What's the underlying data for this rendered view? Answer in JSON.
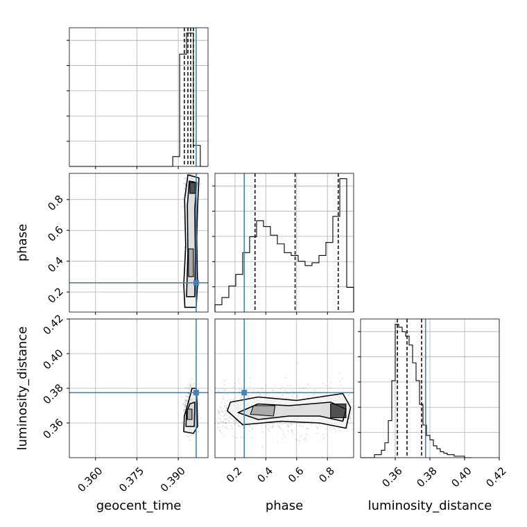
{
  "chart_data": {
    "type": "corner",
    "parameters": [
      "geocent_time",
      "phase",
      "luminosity_distance"
    ],
    "axes": {
      "geocent_time": {
        "range": [
          0.3505,
          0.4008
        ],
        "ticks": [
          0.36,
          0.375,
          0.39
        ],
        "tick_labels": [
          "0.360",
          "0.375",
          "0.390"
        ]
      },
      "phase": {
        "range": [
          0.07,
          0.97
        ],
        "ticks": [
          0.2,
          0.4,
          0.6,
          0.8
        ],
        "tick_labels": [
          "0.2",
          "0.4",
          "0.6",
          "0.8"
        ]
      },
      "luminosity_distance": {
        "range": [
          0.34,
          0.42
        ],
        "ticks": [
          0.36,
          0.38,
          0.4,
          0.42
        ],
        "tick_labels": [
          "0.36",
          "0.38",
          "0.40",
          "0.42"
        ]
      }
    },
    "truths": {
      "geocent_time": 0.3965,
      "phase": 0.26,
      "luminosity_distance": 0.3775
    },
    "marginals": {
      "geocent_time": {
        "edges": [
          0.3505,
          0.353,
          0.3555,
          0.358,
          0.3605,
          0.363,
          0.3655,
          0.368,
          0.3705,
          0.373,
          0.3755,
          0.378,
          0.3805,
          0.383,
          0.3855,
          0.388,
          0.3905,
          0.393,
          0.3955,
          0.398,
          0.4005
        ],
        "counts": [
          0,
          0,
          0,
          0,
          0,
          0,
          0,
          0,
          0,
          0,
          0,
          0,
          0,
          0,
          0,
          0.07,
          0.8,
          0.95,
          0.15,
          0
        ],
        "quantiles": [
          0.3922,
          0.3935,
          0.3945,
          0.3955
        ]
      },
      "phase": {
        "edges": [
          0.07,
          0.115,
          0.16,
          0.205,
          0.25,
          0.295,
          0.34,
          0.385,
          0.43,
          0.475,
          0.52,
          0.565,
          0.61,
          0.655,
          0.7,
          0.745,
          0.79,
          0.835,
          0.88,
          0.925,
          0.97
        ],
        "counts": [
          0.05,
          0.1,
          0.18,
          0.26,
          0.41,
          0.52,
          0.63,
          0.59,
          0.53,
          0.47,
          0.41,
          0.39,
          0.35,
          0.32,
          0.34,
          0.39,
          0.48,
          0.66,
          0.92,
          0.17
        ],
        "quantiles": [
          0.33,
          0.59,
          0.87
        ]
      },
      "luminosity_distance": {
        "edges": [
          0.34,
          0.342,
          0.344,
          0.346,
          0.348,
          0.35,
          0.352,
          0.354,
          0.356,
          0.358,
          0.36,
          0.362,
          0.364,
          0.366,
          0.368,
          0.37,
          0.372,
          0.374,
          0.376,
          0.378,
          0.38,
          0.382,
          0.384,
          0.386,
          0.388,
          0.39,
          0.392,
          0.394,
          0.396,
          0.398,
          0.4,
          0.402,
          0.404
        ],
        "counts": [
          0,
          0,
          0,
          0,
          0.02,
          0.02,
          0.05,
          0.1,
          0.25,
          0.52,
          0.9,
          0.88,
          0.85,
          0.82,
          0.76,
          0.64,
          0.52,
          0.36,
          0.22,
          0.15,
          0.12,
          0.08,
          0.06,
          0.04,
          0.03,
          0.02,
          0.02,
          0.01,
          0.01,
          0.01,
          0,
          0
        ],
        "quantiles": [
          0.3612,
          0.3668,
          0.3752
        ]
      }
    },
    "contours_2d": {
      "phase_vs_geocent_time": [
        [
          [
            0.3924,
            0.1
          ],
          [
            0.3965,
            0.1
          ],
          [
            0.397,
            0.25
          ],
          [
            0.3967,
            0.55
          ],
          [
            0.397,
            0.75
          ],
          [
            0.3975,
            0.94
          ],
          [
            0.3935,
            0.96
          ],
          [
            0.3923,
            0.8
          ],
          [
            0.3927,
            0.5
          ],
          [
            0.392,
            0.25
          ]
        ],
        [
          [
            0.393,
            0.17
          ],
          [
            0.396,
            0.17
          ],
          [
            0.3962,
            0.45
          ],
          [
            0.396,
            0.74
          ],
          [
            0.3967,
            0.91
          ],
          [
            0.394,
            0.92
          ],
          [
            0.3933,
            0.76
          ],
          [
            0.3935,
            0.45
          ]
        ],
        [
          [
            0.3937,
            0.3
          ],
          [
            0.3955,
            0.3
          ],
          [
            0.3955,
            0.48
          ],
          [
            0.3937,
            0.48
          ]
        ],
        [
          [
            0.3942,
            0.84
          ],
          [
            0.3962,
            0.84
          ],
          [
            0.3962,
            0.91
          ],
          [
            0.3942,
            0.91
          ]
        ]
      ],
      "luminosity_distance_vs_geocent_time": [
        [
          [
            0.392,
            0.355
          ],
          [
            0.3955,
            0.354
          ],
          [
            0.397,
            0.358
          ],
          [
            0.3968,
            0.372
          ],
          [
            0.3965,
            0.38
          ],
          [
            0.395,
            0.38
          ],
          [
            0.3935,
            0.371
          ],
          [
            0.3922,
            0.364
          ]
        ],
        [
          [
            0.3928,
            0.358
          ],
          [
            0.3958,
            0.358
          ],
          [
            0.396,
            0.372
          ],
          [
            0.3942,
            0.371
          ],
          [
            0.393,
            0.366
          ]
        ],
        [
          [
            0.3933,
            0.362
          ],
          [
            0.395,
            0.362
          ],
          [
            0.395,
            0.368
          ],
          [
            0.3933,
            0.368
          ]
        ]
      ],
      "luminosity_distance_vs_phase": [
        [
          [
            0.15,
            0.367
          ],
          [
            0.25,
            0.359
          ],
          [
            0.5,
            0.361
          ],
          [
            0.75,
            0.36
          ],
          [
            0.92,
            0.357
          ],
          [
            0.95,
            0.369
          ],
          [
            0.9,
            0.377
          ],
          [
            0.6,
            0.373
          ],
          [
            0.35,
            0.375
          ],
          [
            0.17,
            0.372
          ]
        ],
        [
          [
            0.22,
            0.366
          ],
          [
            0.35,
            0.362
          ],
          [
            0.55,
            0.364
          ],
          [
            0.75,
            0.364
          ],
          [
            0.9,
            0.361
          ],
          [
            0.92,
            0.368
          ],
          [
            0.82,
            0.372
          ],
          [
            0.55,
            0.37
          ],
          [
            0.35,
            0.371
          ]
        ],
        [
          [
            0.3,
            0.365
          ],
          [
            0.45,
            0.364
          ],
          [
            0.46,
            0.37
          ],
          [
            0.32,
            0.37
          ]
        ],
        [
          [
            0.82,
            0.363
          ],
          [
            0.92,
            0.363
          ],
          [
            0.92,
            0.371
          ],
          [
            0.82,
            0.371
          ]
        ]
      ]
    }
  }
}
